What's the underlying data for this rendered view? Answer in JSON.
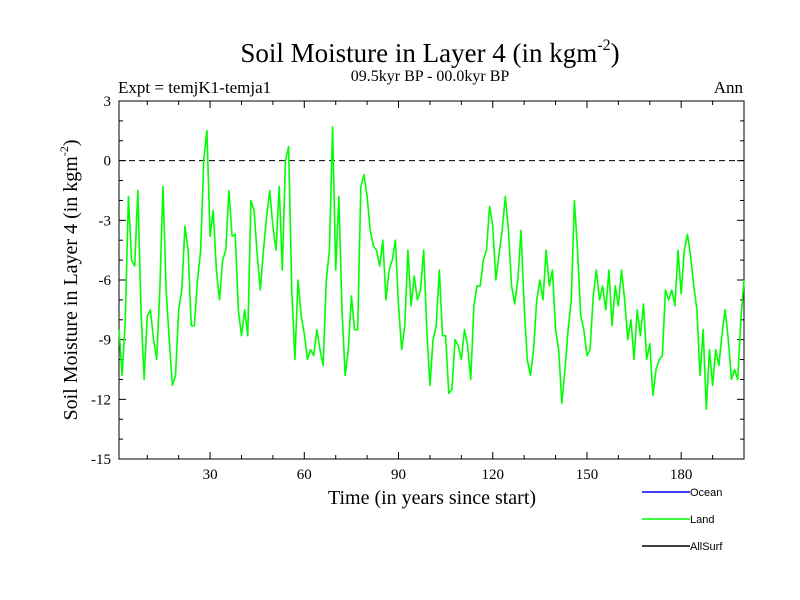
{
  "chart_data": {
    "type": "line",
    "title": "Soil Moisture in Layer 4 (in kgm",
    "title_sup": "-2",
    "title_close": ")",
    "subtitle_left": "Expt = temjK1-temja1",
    "subtitle_center": "09.5kyr BP - 00.0kyr BP",
    "subtitle_right": "Ann",
    "xlabel": "Time (in years since start)",
    "ylabel": "Soil Moisture in Layer 4 (in kgm",
    "ylabel_sup": "-2",
    "ylabel_close": ")",
    "xlim": [
      1,
      200
    ],
    "ylim": [
      -15,
      3
    ],
    "xticks": [
      30,
      60,
      90,
      120,
      150,
      180
    ],
    "yticks": [
      3,
      0,
      -3,
      -6,
      -9,
      -12,
      -15
    ],
    "zero_line": 0,
    "legend": [
      {
        "name": "Ocean",
        "color": "#0000ff"
      },
      {
        "name": "Land",
        "color": "#00ff00"
      },
      {
        "name": "AllSurf",
        "color": "#000000"
      }
    ],
    "series": [
      {
        "name": "Land",
        "color": "#00ff00",
        "x_start": 1,
        "x_step": 1,
        "values": [
          -8.5,
          -10.8,
          -8,
          -1.8,
          -5,
          -5.3,
          -1.5,
          -7.5,
          -11,
          -7.8,
          -7.5,
          -9,
          -10,
          -6.5,
          -1.3,
          -6.5,
          -9,
          -11.3,
          -10.8,
          -7.5,
          -6.5,
          -3.3,
          -4.5,
          -8.3,
          -8.3,
          -6,
          -4.5,
          0.1,
          1.5,
          -3.8,
          -2.5,
          -5.5,
          -7,
          -5,
          -4.5,
          -1.5,
          -3.8,
          -3.7,
          -7.5,
          -8.8,
          -7.5,
          -8.8,
          -2,
          -2.5,
          -4.7,
          -6.5,
          -4.5,
          -2.8,
          -1.5,
          -3.3,
          -4.5,
          -1.3,
          -5.5,
          0,
          0.7,
          -6.5,
          -10,
          -6,
          -7.8,
          -8.7,
          -10,
          -9.5,
          -9.8,
          -8.5,
          -9.5,
          -10.3,
          -6,
          -4.5,
          1.7,
          -5.5,
          -1.8,
          -7.5,
          -10.8,
          -9.5,
          -6.8,
          -8.5,
          -8.5,
          -1.3,
          -0.7,
          -1.8,
          -3.5,
          -4.3,
          -4.5,
          -5.3,
          -4,
          -7,
          -5.5,
          -5,
          -4,
          -7.3,
          -9.5,
          -8.3,
          -4.5,
          -7.3,
          -5.8,
          -7,
          -6.5,
          -4.5,
          -8.5,
          -11.3,
          -9,
          -8.3,
          -5.5,
          -8.8,
          -8.8,
          -11.7,
          -11.5,
          -9,
          -9.3,
          -10,
          -8.5,
          -9.3,
          -11,
          -7.3,
          -6.3,
          -6.3,
          -5,
          -4.5,
          -2.3,
          -3.3,
          -6,
          -4.7,
          -3.5,
          -1.8,
          -3.5,
          -6.3,
          -7.2,
          -6,
          -3.5,
          -7.3,
          -10,
          -10.8,
          -9.5,
          -7,
          -6,
          -7,
          -4.5,
          -6.3,
          -5.5,
          -8.5,
          -9.5,
          -12.2,
          -10.5,
          -8.5,
          -7,
          -2,
          -4.5,
          -7.8,
          -8.5,
          -9.8,
          -9.5,
          -6.8,
          -5.5,
          -7,
          -6.3,
          -7.5,
          -5.5,
          -8.3,
          -6.3,
          -7.3,
          -5.5,
          -7,
          -9,
          -8,
          -10,
          -7.5,
          -8.8,
          -7.2,
          -10,
          -9.2,
          -11.8,
          -10.5,
          -10,
          -9.8,
          -6.5,
          -7,
          -6.5,
          -7.3,
          -4.5,
          -6.7,
          -4.5,
          -3.7,
          -4.8,
          -6.3,
          -7.5,
          -10.8,
          -8.5,
          -12.5,
          -9.5,
          -11.3,
          -9.5,
          -10.3,
          -8.7,
          -7.5,
          -9,
          -11,
          -10.5,
          -11,
          -8,
          -6
        ]
      }
    ]
  }
}
